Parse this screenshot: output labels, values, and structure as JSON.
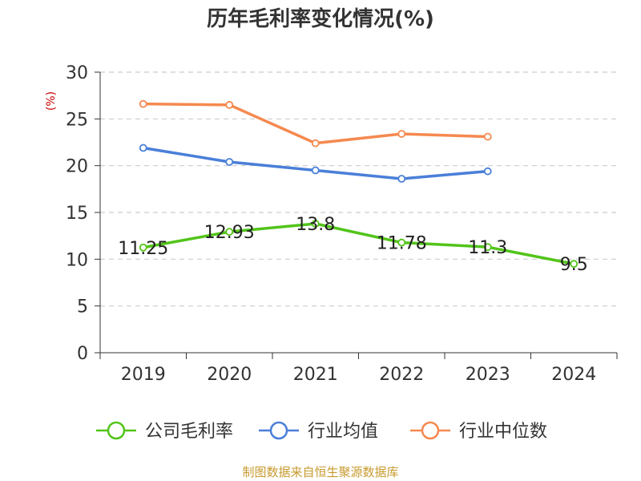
{
  "chart_data": {
    "type": "line",
    "title": "历年毛利率变化情况(%)",
    "ylabel": "(%)",
    "xlabel": "",
    "categories": [
      "2019",
      "2020",
      "2021",
      "2022",
      "2023",
      "2024"
    ],
    "ylim": [
      0,
      30
    ],
    "yticks": [
      0,
      5,
      10,
      15,
      20,
      25,
      30
    ],
    "grid": true,
    "legend_position": "bottom",
    "series": [
      {
        "name": "公司毛利率",
        "color": "#52c41a",
        "values": [
          11.25,
          12.93,
          13.8,
          11.78,
          11.3,
          9.5
        ],
        "labels": [
          "11.25",
          "12.93",
          "13.8",
          "11.78",
          "11.3",
          "9.5"
        ]
      },
      {
        "name": "行业均值",
        "color": "#4a7fd9",
        "values": [
          21.9,
          20.4,
          19.5,
          18.6,
          19.4,
          null
        ]
      },
      {
        "name": "行业中位数",
        "color": "#f5894f",
        "values": [
          26.6,
          26.5,
          22.4,
          23.4,
          23.1,
          null
        ]
      }
    ]
  },
  "footer": "制图数据来自恒生聚源数据库",
  "colors": {
    "ylabel": "#cc0000",
    "footer": "#c79a2e",
    "grid": "#cccccc",
    "axis": "#333333"
  }
}
